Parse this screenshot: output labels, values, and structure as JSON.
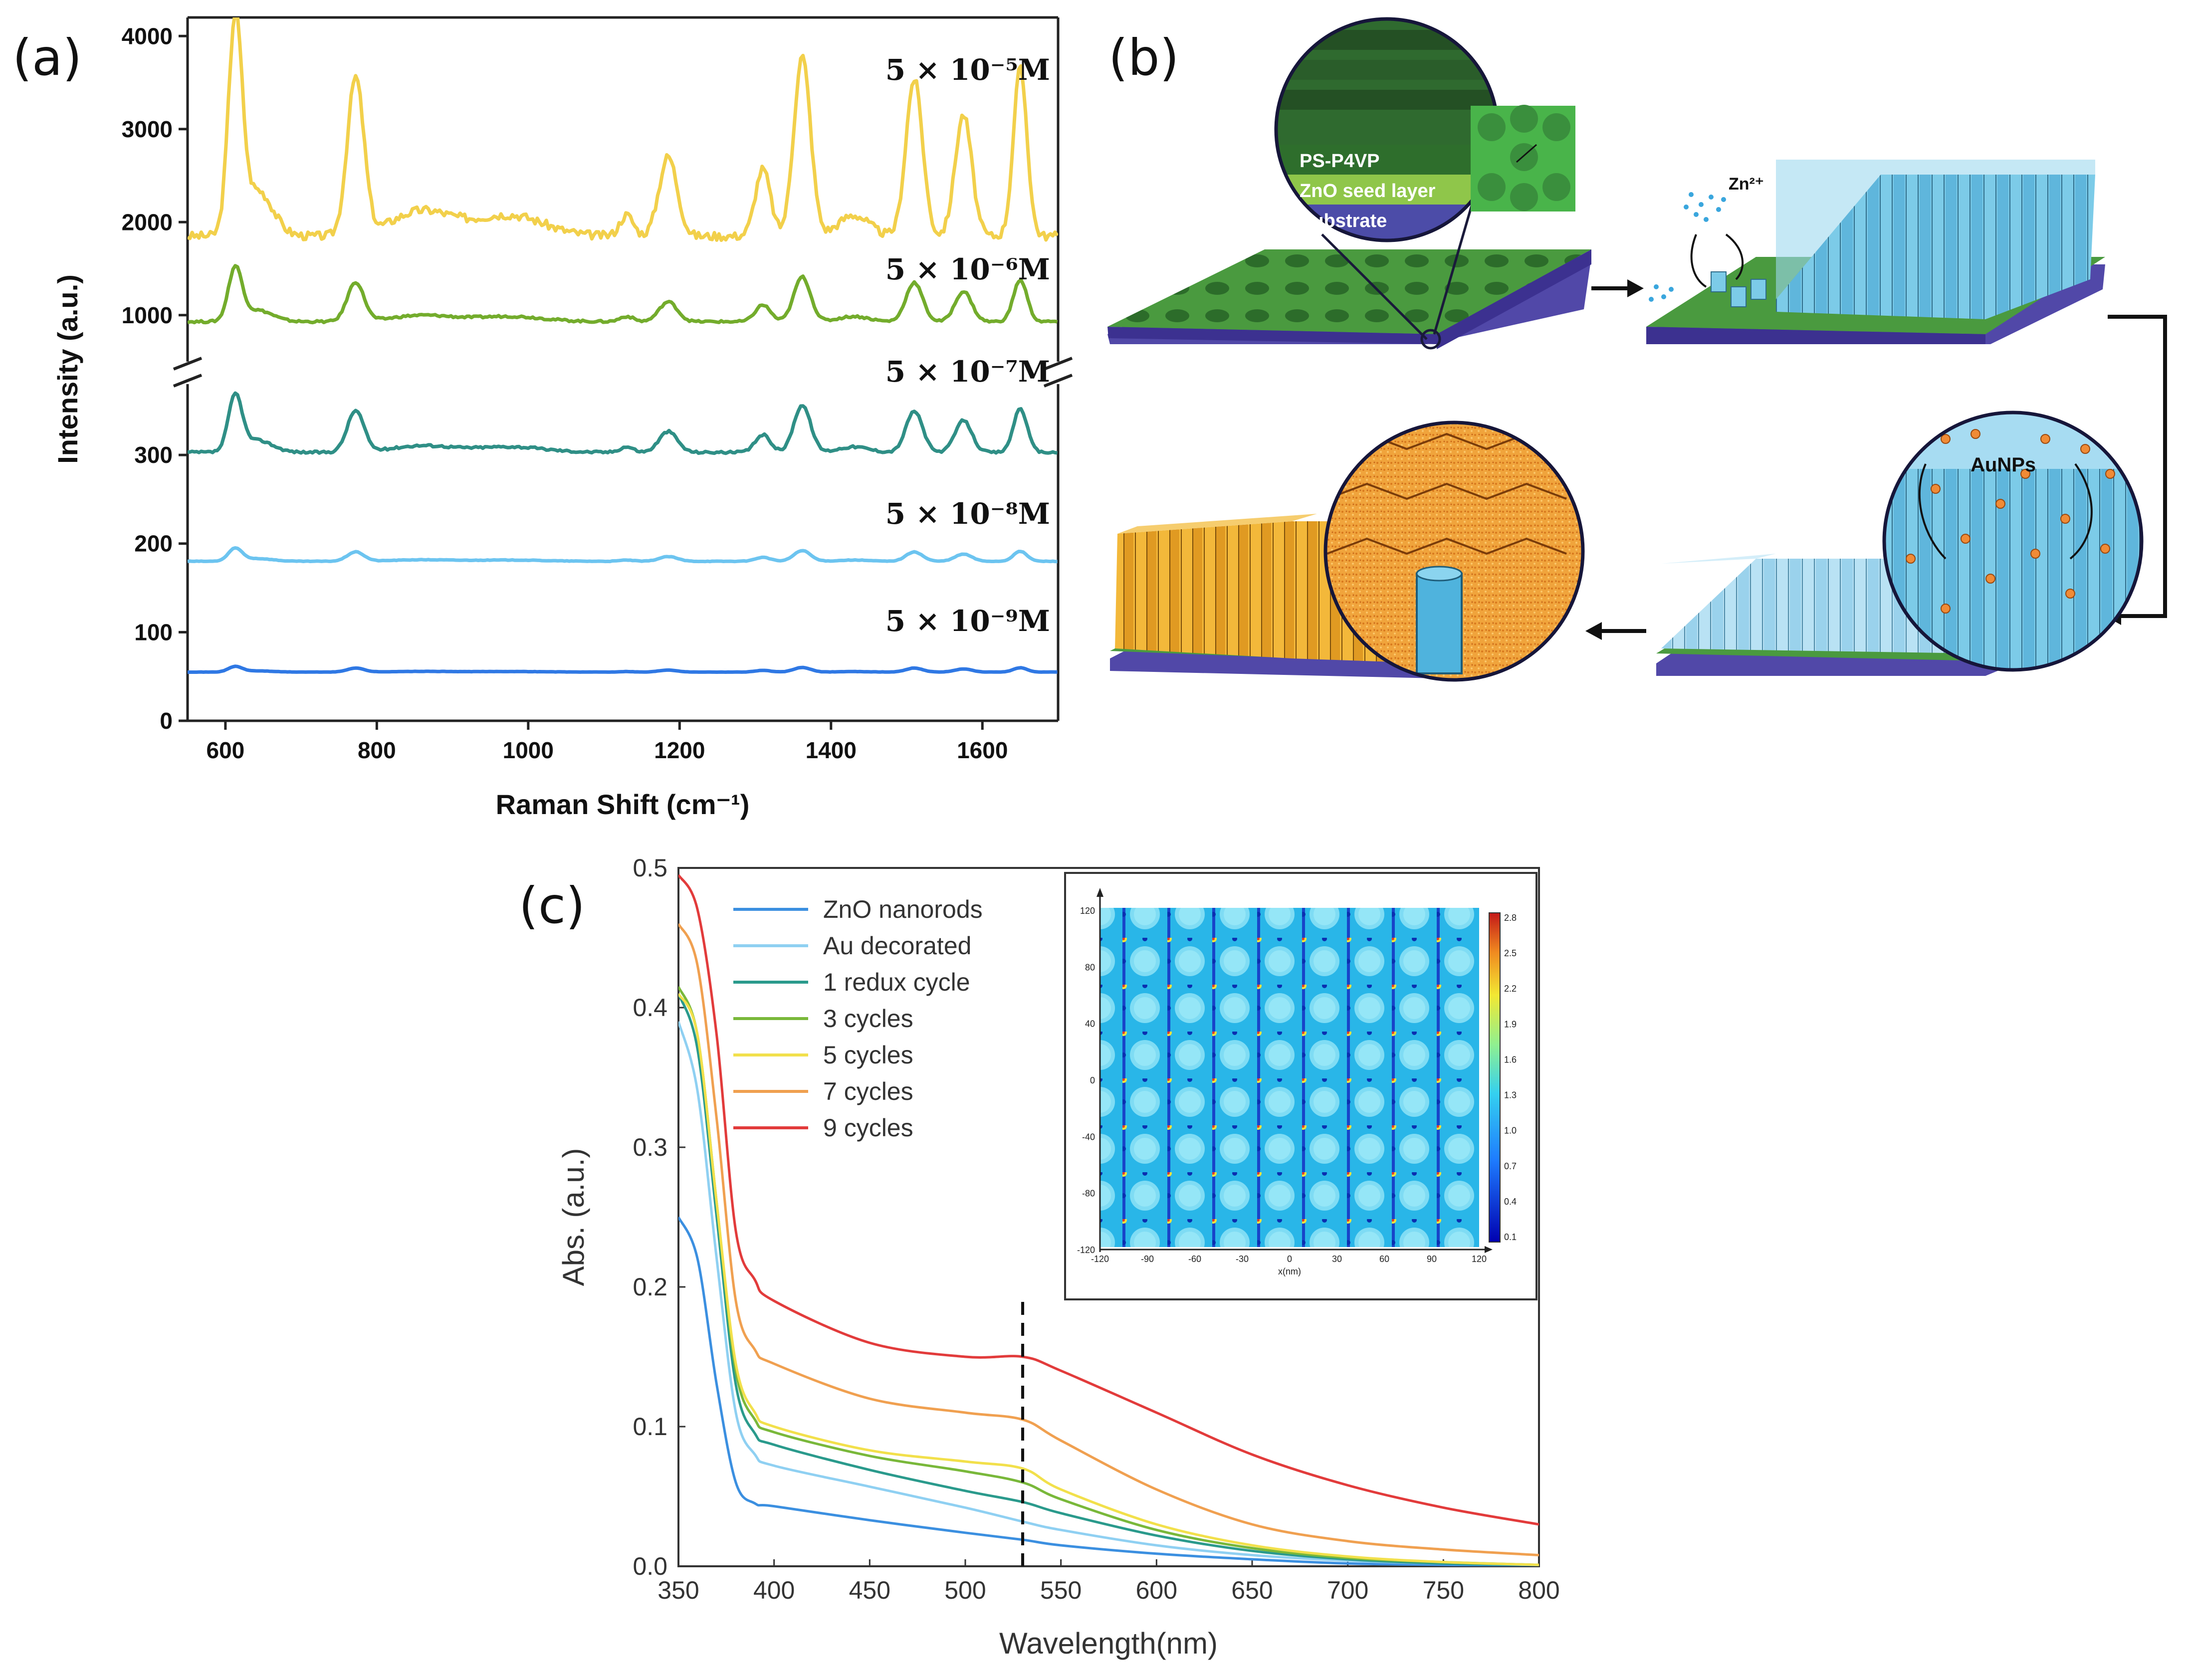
{
  "panels": {
    "a": {
      "letter": "(a)"
    },
    "b": {
      "letter": "(b)"
    },
    "c": {
      "letter": "(c)"
    }
  },
  "diagram_b": {
    "layers": [
      "PS-P4VP",
      "ZnO seed layer",
      "Substrate"
    ],
    "ion_label": "Zn²⁺",
    "particle_label": "AuNPs",
    "colors": {
      "polymer": "#3f8f3a",
      "seed": "#8fc64a",
      "substrate": "#5b55b3",
      "rods": "#78c7e6",
      "gold": "#f2b63c"
    }
  },
  "chart_data": [
    {
      "id": "a",
      "type": "line",
      "title": "",
      "xlabel": "Raman Shift (cm⁻¹)",
      "ylabel": "Intensity (a.u.)",
      "xlim": [
        550,
        1700
      ],
      "x_ticks": [
        600,
        800,
        1000,
        1200,
        1400,
        1600
      ],
      "y_break": true,
      "upper_ylim": [
        500,
        4200
      ],
      "upper_y_ticks": [
        1000,
        2000,
        3000,
        4000
      ],
      "lower_ylim": [
        0,
        380
      ],
      "lower_y_ticks": [
        0,
        100,
        200,
        300
      ],
      "peaks": [
        {
          "center": 613,
          "weight": 1.0,
          "width": 9
        },
        {
          "center": 642,
          "weight": 0.22,
          "width": 20
        },
        {
          "center": 772,
          "weight": 0.75,
          "width": 11
        },
        {
          "center": 860,
          "weight": 0.12,
          "width": 40
        },
        {
          "center": 975,
          "weight": 0.1,
          "width": 45
        },
        {
          "center": 1130,
          "weight": 0.1,
          "width": 9
        },
        {
          "center": 1185,
          "weight": 0.38,
          "width": 12
        },
        {
          "center": 1310,
          "weight": 0.32,
          "width": 10
        },
        {
          "center": 1362,
          "weight": 0.86,
          "width": 11
        },
        {
          "center": 1430,
          "weight": 0.1,
          "width": 20
        },
        {
          "center": 1510,
          "weight": 0.75,
          "width": 11
        },
        {
          "center": 1575,
          "weight": 0.58,
          "width": 11
        },
        {
          "center": 1650,
          "weight": 0.8,
          "width": 9
        }
      ],
      "series": [
        {
          "name": "5×10⁻⁵M",
          "label": "5 × 10⁻⁵M",
          "color": "#f2d04b",
          "axis": "upper",
          "baseline": 1850,
          "scale": 2250
        },
        {
          "name": "5×10⁻⁶M",
          "label": "5 × 10⁻⁶M",
          "color": "#73ac2c",
          "axis": "upper",
          "baseline": 930,
          "scale": 560
        },
        {
          "name": "5×10⁻⁷M",
          "label": "5 × 10⁻⁷M",
          "color": "#2f8f86",
          "axis": "lower",
          "baseline": 303,
          "scale": 62
        },
        {
          "name": "5×10⁻⁸M",
          "label": "5 × 10⁻⁸M",
          "color": "#6cc4f0",
          "axis": "lower",
          "baseline": 180,
          "scale": 14
        },
        {
          "name": "5×10⁻⁹M",
          "label": "5 × 10⁻⁹M",
          "color": "#2f78e4",
          "axis": "lower",
          "baseline": 55,
          "scale": 6
        }
      ]
    },
    {
      "id": "c",
      "type": "line",
      "title": "",
      "xlabel": "Wavelength(nm)",
      "ylabel": "Abs. (a.u.)",
      "xlim": [
        350,
        800
      ],
      "ylim": [
        0.0,
        0.5
      ],
      "x_ticks": [
        350,
        400,
        450,
        500,
        550,
        600,
        650,
        700,
        750,
        800
      ],
      "y_ticks": [
        0.0,
        0.1,
        0.2,
        0.3,
        0.4,
        0.5
      ],
      "marker_line_x": 530,
      "x": [
        350,
        360,
        370,
        380,
        390,
        400,
        450,
        500,
        530,
        550,
        600,
        650,
        700,
        750,
        800
      ],
      "series": [
        {
          "name": "ZnO nanorods",
          "color": "#3b8fe0",
          "values": [
            0.25,
            0.22,
            0.13,
            0.06,
            0.045,
            0.043,
            0.033,
            0.024,
            0.019,
            0.015,
            0.009,
            0.005,
            0.002,
            0.001,
            0.0
          ]
        },
        {
          "name": "Au decorated",
          "color": "#8fd0f2",
          "values": [
            0.39,
            0.34,
            0.22,
            0.11,
            0.08,
            0.072,
            0.057,
            0.042,
            0.032,
            0.026,
            0.015,
            0.008,
            0.004,
            0.002,
            0.001
          ]
        },
        {
          "name": "1 redux cycle",
          "color": "#2a9a8c",
          "values": [
            0.41,
            0.37,
            0.25,
            0.13,
            0.095,
            0.087,
            0.069,
            0.054,
            0.046,
            0.038,
            0.022,
            0.011,
            0.005,
            0.002,
            0.001
          ]
        },
        {
          "name": "3 cycles",
          "color": "#79b83a",
          "values": [
            0.415,
            0.38,
            0.26,
            0.14,
            0.105,
            0.096,
            0.079,
            0.068,
            0.06,
            0.048,
            0.026,
            0.013,
            0.006,
            0.003,
            0.001
          ]
        },
        {
          "name": "5 cycles",
          "color": "#f2e04b",
          "values": [
            0.41,
            0.38,
            0.26,
            0.145,
            0.11,
            0.1,
            0.083,
            0.075,
            0.07,
            0.055,
            0.03,
            0.015,
            0.007,
            0.003,
            0.001
          ]
        },
        {
          "name": "7 cycles",
          "color": "#f0a050",
          "values": [
            0.46,
            0.43,
            0.32,
            0.19,
            0.155,
            0.145,
            0.12,
            0.11,
            0.105,
            0.09,
            0.055,
            0.03,
            0.018,
            0.012,
            0.008
          ]
        },
        {
          "name": "9 cycles",
          "color": "#e23b3b",
          "values": [
            0.495,
            0.47,
            0.38,
            0.24,
            0.205,
            0.19,
            0.16,
            0.15,
            0.15,
            0.14,
            0.11,
            0.08,
            0.058,
            0.042,
            0.03
          ]
        }
      ],
      "inset": {
        "xlabel": "x(nm)",
        "x_ticks": [
          -120,
          -90,
          -60,
          -30,
          0,
          30,
          60,
          90,
          120
        ],
        "y_ticks": [
          120,
          80,
          40,
          0,
          -40,
          -80,
          -120
        ],
        "colorbar_ticks": [
          "2.8",
          "2.5",
          "2.2",
          "1.9",
          "1.6",
          "1.3",
          "1.0",
          "0.7",
          "0.4",
          "0.1"
        ]
      }
    }
  ]
}
